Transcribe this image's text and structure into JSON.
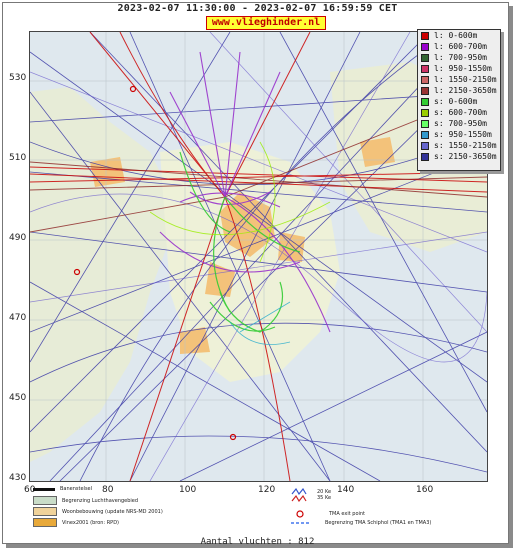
{
  "title": "2023-02-07 11:30:00 - 2023-02-07 16:59:59 CET",
  "site": "www.vlieghinder.nl",
  "y_ticks": [
    "530",
    "510",
    "490",
    "470",
    "450",
    "430"
  ],
  "x_ticks": [
    "60",
    "80",
    "100",
    "120",
    "140",
    "160"
  ],
  "legend": [
    {
      "label": "l: 0-600m",
      "color": "#cc0000"
    },
    {
      "label": "l: 600-700m",
      "color": "#9900cc"
    },
    {
      "label": "l: 700-950m",
      "color": "#336633"
    },
    {
      "label": "l: 950-1550m",
      "color": "#cc3366"
    },
    {
      "label": "l: 1550-2150m",
      "color": "#cc6666"
    },
    {
      "label": "l: 2150-3650m",
      "color": "#993333"
    },
    {
      "label": "s: 0-600m",
      "color": "#33cc33"
    },
    {
      "label": "s: 600-700m",
      "color": "#99cc00"
    },
    {
      "label": "s: 700-950m",
      "color": "#66ff66"
    },
    {
      "label": "s: 950-1550m",
      "color": "#3399cc"
    },
    {
      "label": "s: 1550-2150m",
      "color": "#6666cc"
    },
    {
      "label": "s: 2150-3650m",
      "color": "#333399"
    }
  ],
  "footer": {
    "runway": "Banenstelsel",
    "airport_boundary": "Begrenzing Luchthavengebied",
    "housing": "Woonbebouwing (update NRS-MD 2001)",
    "vinex": "Vinex2001 (bron: RPD)",
    "noise_20": "20 Ke",
    "noise_35": "35 Ke",
    "tma_exit": "TMA exit point",
    "tma_boundary": "Begrenzing TMA Schiphol (TMA1 en TMA3)"
  },
  "count_text": "Aantal vluchten : 812"
}
